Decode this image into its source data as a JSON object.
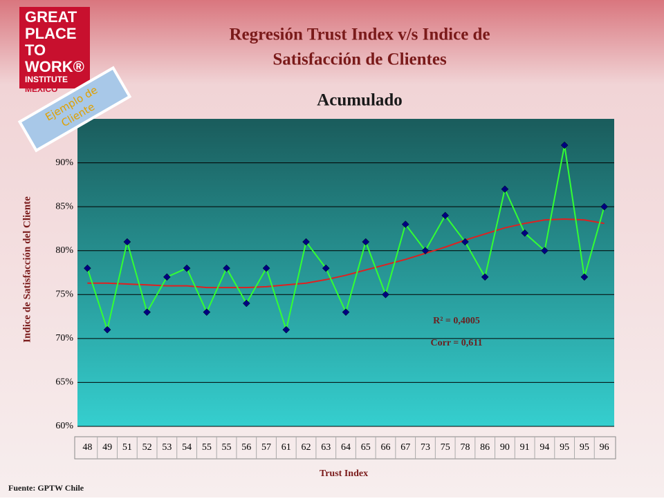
{
  "logo": {
    "lines": [
      "GREAT",
      "PLACE",
      "TO",
      "WORK®"
    ],
    "institute": "INSTITUTE",
    "country": "MÉXICO"
  },
  "stamp": [
    "Ejemplo de",
    "Cliente"
  ],
  "source": "Fuente: GPTW Chile",
  "chart_data": {
    "type": "line",
    "title": [
      "Regresión Trust Index v/s Indice de",
      "Satisfacción de Clientes"
    ],
    "subtitle": "Acumulado",
    "x_label": "Trust Index",
    "y_label": "Indice de Satisfacción del Cliente",
    "categories": [
      "48",
      "49",
      "51",
      "52",
      "53",
      "54",
      "55",
      "55",
      "56",
      "57",
      "61",
      "62",
      "63",
      "64",
      "65",
      "66",
      "67",
      "73",
      "75",
      "78",
      "86",
      "90",
      "91",
      "94",
      "95",
      "95",
      "96"
    ],
    "series": [
      {
        "color": "#33ff33",
        "marker_color": "#000080",
        "values": [
          78,
          71,
          81,
          73,
          77,
          78,
          73,
          78,
          74,
          78,
          71,
          81,
          78,
          73,
          81,
          75,
          83,
          80,
          84,
          81,
          77,
          87,
          82,
          80,
          92,
          77,
          85
        ]
      }
    ],
    "trendline": {
      "color": "#e02020",
      "values": [
        76.3,
        76.3,
        76.2,
        76.1,
        76.0,
        76.0,
        75.8,
        75.8,
        75.8,
        75.9,
        76.1,
        76.3,
        76.7,
        77.2,
        77.8,
        78.4,
        79.0,
        79.7,
        80.4,
        81.2,
        81.9,
        82.6,
        83.1,
        83.5,
        83.6,
        83.5,
        83.1
      ]
    },
    "annotations": [
      "R² = 0,4005",
      "Corr = 0,611"
    ],
    "ylim": [
      60,
      95
    ],
    "yticks": [
      {
        "value": 60,
        "label": "60%"
      },
      {
        "value": 65,
        "label": "65%"
      },
      {
        "value": 70,
        "label": "70%"
      },
      {
        "value": 75,
        "label": "75%"
      },
      {
        "value": 80,
        "label": "80%"
      },
      {
        "value": 85,
        "label": "85%"
      },
      {
        "value": 90,
        "label": "90%"
      }
    ],
    "grid": true
  }
}
